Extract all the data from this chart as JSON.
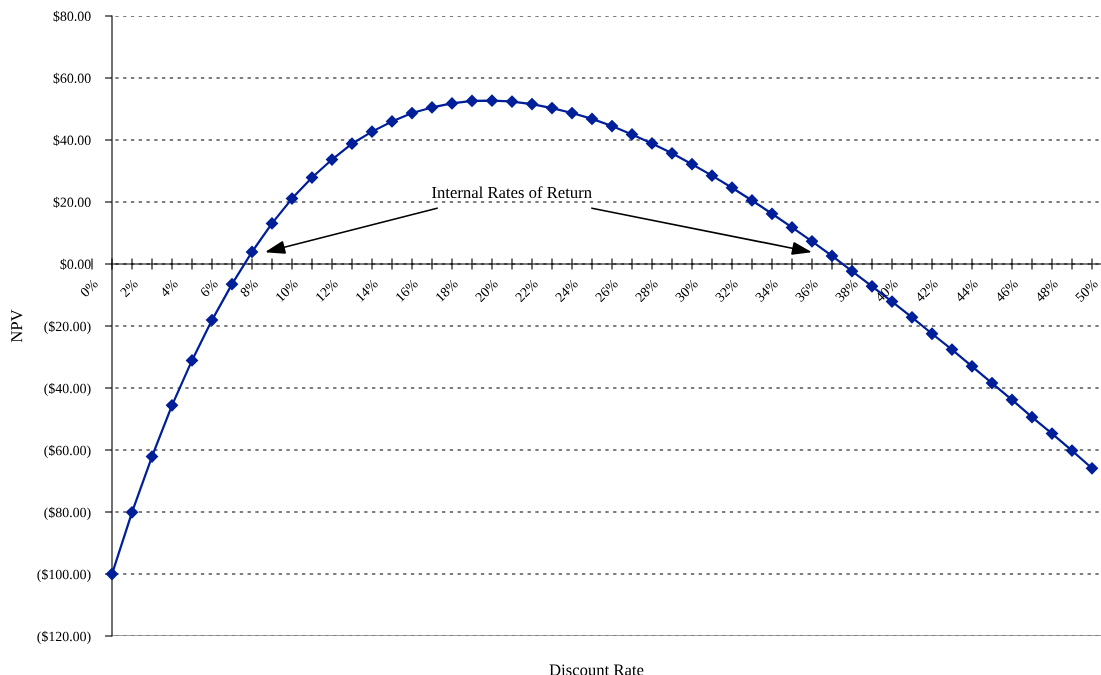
{
  "chart_data": {
    "type": "line",
    "xlabel": "Discount Rate",
    "ylabel": "NPV",
    "x": [
      1,
      2,
      3,
      4,
      5,
      6,
      7,
      8,
      9,
      10,
      11,
      12,
      13,
      14,
      15,
      16,
      17,
      18,
      19,
      20,
      21,
      22,
      23,
      24,
      25,
      26,
      27,
      28,
      29,
      30,
      31,
      32,
      33,
      34,
      35,
      36,
      37,
      38,
      39,
      40,
      41,
      42,
      43,
      44,
      45,
      46,
      47,
      48,
      49,
      50
    ],
    "series": [
      {
        "color": "#001f99",
        "values": [
          -100,
          -80.1,
          -62.1,
          -45.6,
          -31.1,
          -18.1,
          -6.5,
          3.9,
          13.1,
          21.1,
          27.9,
          33.7,
          38.8,
          42.7,
          46.0,
          48.7,
          50.5,
          51.8,
          52.6,
          52.7,
          52.4,
          51.6,
          50.3,
          48.7,
          46.8,
          44.5,
          41.8,
          38.9,
          35.7,
          32.2,
          28.5,
          24.6,
          20.5,
          16.2,
          11.8,
          7.3,
          2.6,
          -2.3,
          -7.2,
          -12.1,
          -17.2,
          -22.5,
          -27.6,
          -33.0,
          -38.4,
          -43.8,
          -49.4,
          -54.7,
          -60.2,
          -65.9
        ]
      }
    ],
    "marker": "diamond",
    "line_style": "solid",
    "grid": "y",
    "xlim": [
      0,
      50.45
    ],
    "xticks": [
      {
        "value": 0,
        "label": "0%"
      },
      {
        "value": 1,
        "label": null
      },
      {
        "value": 2,
        "label": "2%"
      },
      {
        "value": 3,
        "label": null
      },
      {
        "value": 4,
        "label": "4%"
      },
      {
        "value": 5,
        "label": null
      },
      {
        "value": 6,
        "label": "6%"
      },
      {
        "value": 7,
        "label": null
      },
      {
        "value": 8,
        "label": "8%"
      },
      {
        "value": 9,
        "label": null
      },
      {
        "value": 10,
        "label": "10%"
      },
      {
        "value": 11,
        "label": null
      },
      {
        "value": 12,
        "label": "12%"
      },
      {
        "value": 13,
        "label": null
      },
      {
        "value": 14,
        "label": "14%"
      },
      {
        "value": 15,
        "label": null
      },
      {
        "value": 16,
        "label": "16%"
      },
      {
        "value": 17,
        "label": null
      },
      {
        "value": 18,
        "label": "18%"
      },
      {
        "value": 19,
        "label": null
      },
      {
        "value": 20,
        "label": "20%"
      },
      {
        "value": 21,
        "label": null
      },
      {
        "value": 22,
        "label": "22%"
      },
      {
        "value": 23,
        "label": null
      },
      {
        "value": 24,
        "label": "24%"
      },
      {
        "value": 25,
        "label": null
      },
      {
        "value": 26,
        "label": "26%"
      },
      {
        "value": 27,
        "label": null
      },
      {
        "value": 28,
        "label": "28%"
      },
      {
        "value": 29,
        "label": null
      },
      {
        "value": 30,
        "label": "30%"
      },
      {
        "value": 31,
        "label": null
      },
      {
        "value": 32,
        "label": "32%"
      },
      {
        "value": 33,
        "label": null
      },
      {
        "value": 34,
        "label": "34%"
      },
      {
        "value": 35,
        "label": null
      },
      {
        "value": 36,
        "label": "36%"
      },
      {
        "value": 37,
        "label": null
      },
      {
        "value": 38,
        "label": "38%"
      },
      {
        "value": 39,
        "label": null
      },
      {
        "value": 40,
        "label": "40%"
      },
      {
        "value": 41,
        "label": null
      },
      {
        "value": 42,
        "label": "42%"
      },
      {
        "value": 43,
        "label": null
      },
      {
        "value": 44,
        "label": "44%"
      },
      {
        "value": 45,
        "label": null
      },
      {
        "value": 46,
        "label": "46%"
      },
      {
        "value": 47,
        "label": null
      },
      {
        "value": 48,
        "label": "48%"
      },
      {
        "value": 49,
        "label": null
      },
      {
        "value": 50,
        "label": "50%"
      }
    ],
    "ylim": [
      -120,
      80
    ],
    "yticks": [
      {
        "value": -120,
        "label": "($120.00)"
      },
      {
        "value": -100,
        "label": "($100.00)"
      },
      {
        "value": -80,
        "label": "($80.00)"
      },
      {
        "value": -60,
        "label": "($60.00)"
      },
      {
        "value": -40,
        "label": "($40.00)"
      },
      {
        "value": -20,
        "label": "($20.00)"
      },
      {
        "value": 0,
        "label": "$0.00"
      },
      {
        "value": 20,
        "label": "$20.00"
      },
      {
        "value": 40,
        "label": "$40.00"
      },
      {
        "value": 60,
        "label": "$60.00"
      },
      {
        "value": 80,
        "label": "$80.00"
      }
    ],
    "annotations": [
      "Internal Rates of Return"
    ]
  }
}
